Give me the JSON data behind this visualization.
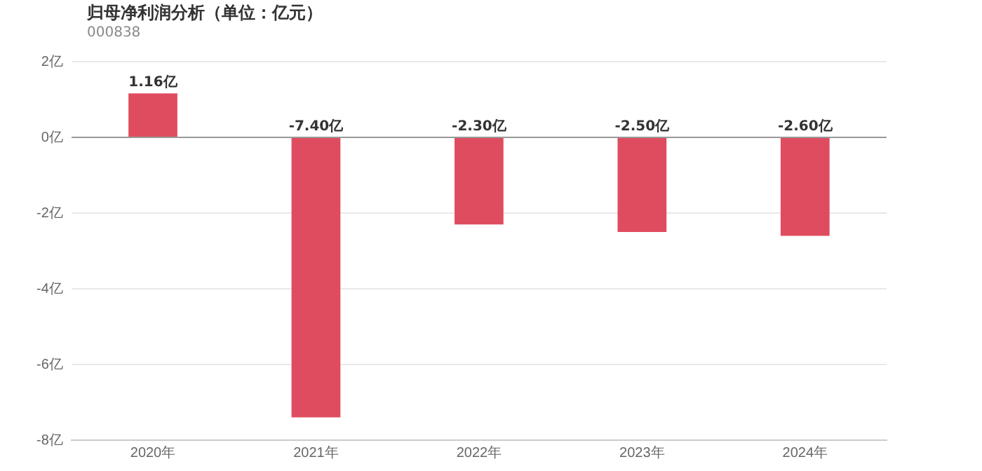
{
  "chart_data": {
    "type": "bar",
    "title": "归母净利润分析（单位：亿元）",
    "subtitle": "000838",
    "categories": [
      "2020年",
      "2021年",
      "2022年",
      "2023年",
      "2024年"
    ],
    "values": [
      1.16,
      -7.4,
      -2.3,
      -2.5,
      -2.6
    ],
    "value_labels": [
      "1.16亿",
      "-7.40亿",
      "-2.30亿",
      "-2.50亿",
      "-2.60亿"
    ],
    "color": "#e04c5f",
    "ylim": [
      -8,
      2
    ],
    "yticks": [
      {
        "value": -8,
        "label": "-8亿"
      },
      {
        "value": -6,
        "label": "-6亿"
      },
      {
        "value": -4,
        "label": "-4亿"
      },
      {
        "value": -2,
        "label": "-2亿"
      },
      {
        "value": 0,
        "label": "0亿"
      },
      {
        "value": 2,
        "label": "2亿"
      }
    ],
    "grid": "y",
    "legend": false
  }
}
